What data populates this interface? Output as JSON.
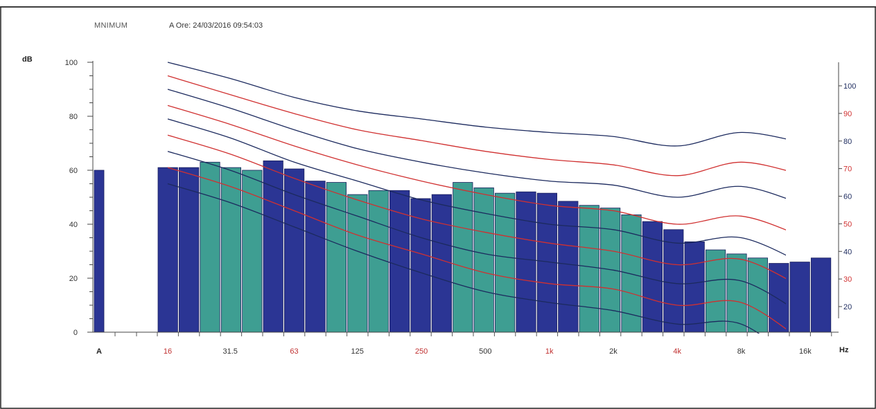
{
  "header": {
    "mode": "MNIMUM",
    "timestamp": "A  Ore: 24/03/2016 09:54:03"
  },
  "chart_data": {
    "type": "bar",
    "ylabel": "dB",
    "xunit": "Hz",
    "ylim": [
      0,
      100
    ],
    "yticks": [
      0,
      20,
      40,
      60,
      80,
      100
    ],
    "nr_ticks": [
      {
        "label": "100",
        "color": "#1c2a5e"
      },
      {
        "label": "90",
        "color": "#d03030"
      },
      {
        "label": "80",
        "color": "#1c2a5e"
      },
      {
        "label": "70",
        "color": "#d03030"
      },
      {
        "label": "60",
        "color": "#1c2a5e"
      },
      {
        "label": "50",
        "color": "#d03030"
      },
      {
        "label": "40",
        "color": "#1c2a5e"
      },
      {
        "label": "30",
        "color": "#d03030"
      },
      {
        "label": "20",
        "color": "#1c2a5e"
      }
    ],
    "x_labels": [
      {
        "label": "A",
        "color": "#222222",
        "bold": true
      },
      {
        "label": "16",
        "color": "#c03030"
      },
      {
        "label": "31.5",
        "color": "#333333"
      },
      {
        "label": "63",
        "color": "#c03030"
      },
      {
        "label": "125",
        "color": "#333333"
      },
      {
        "label": "250",
        "color": "#c03030"
      },
      {
        "label": "500",
        "color": "#333333"
      },
      {
        "label": "1k",
        "color": "#c03030"
      },
      {
        "label": "2k",
        "color": "#333333"
      },
      {
        "label": "4k",
        "color": "#c03030"
      },
      {
        "label": "8k",
        "color": "#333333"
      },
      {
        "label": "16k",
        "color": "#333333"
      }
    ],
    "colors": {
      "octave": "#2b3594",
      "third": "#3e9e92",
      "nr_dark": "#1c2a5e",
      "nr_red": "#d03030"
    },
    "a_weighted": 60,
    "band_values": [
      61,
      61,
      63,
      61,
      60,
      63.5,
      60.5,
      56,
      55.5,
      51,
      52.5,
      52.5,
      49.5,
      51,
      55.5,
      53.5,
      51.5,
      52,
      51.5,
      48.5,
      47,
      46,
      43.5,
      41,
      38,
      33.5,
      30.5,
      29,
      27.5,
      25.5,
      26,
      27.5
    ],
    "band_shade": [
      "octave",
      "octave",
      "third",
      "third",
      "third",
      "octave",
      "octave",
      "octave",
      "third",
      "third",
      "third",
      "octave",
      "octave",
      "octave",
      "third",
      "third",
      "third",
      "octave",
      "octave",
      "octave",
      "third",
      "third",
      "third",
      "octave",
      "octave",
      "octave",
      "third",
      "third",
      "third",
      "octave",
      "octave",
      "octave"
    ],
    "nr_curves": [
      {
        "color": "#1c2a5e",
        "points": [
          [
            16,
            100
          ],
          [
            31.5,
            94
          ],
          [
            63,
            87
          ],
          [
            125,
            82
          ],
          [
            250,
            79
          ],
          [
            500,
            76
          ],
          [
            1000,
            74
          ],
          [
            2000,
            72.5
          ],
          [
            4000,
            69
          ],
          [
            8000,
            74
          ],
          [
            16000,
            70
          ]
        ]
      },
      {
        "color": "#d03030",
        "points": [
          [
            16,
            95
          ],
          [
            31.5,
            88
          ],
          [
            63,
            81
          ],
          [
            125,
            75
          ],
          [
            250,
            71
          ],
          [
            500,
            67
          ],
          [
            1000,
            64
          ],
          [
            2000,
            62
          ],
          [
            4000,
            58
          ],
          [
            8000,
            63
          ],
          [
            16000,
            58
          ]
        ]
      },
      {
        "color": "#1c2a5e",
        "points": [
          [
            16,
            90
          ],
          [
            31.5,
            83
          ],
          [
            63,
            75
          ],
          [
            125,
            68
          ],
          [
            250,
            63
          ],
          [
            500,
            59
          ],
          [
            1000,
            56
          ],
          [
            2000,
            54.5
          ],
          [
            4000,
            50
          ],
          [
            8000,
            54
          ],
          [
            16000,
            47
          ]
        ]
      },
      {
        "color": "#d03030",
        "points": [
          [
            16,
            84
          ],
          [
            31.5,
            77
          ],
          [
            63,
            69
          ],
          [
            125,
            62
          ],
          [
            250,
            56
          ],
          [
            500,
            51
          ],
          [
            1000,
            47
          ],
          [
            2000,
            45
          ],
          [
            4000,
            40
          ],
          [
            8000,
            43
          ],
          [
            16000,
            35
          ]
        ]
      },
      {
        "color": "#1c2a5e",
        "points": [
          [
            16,
            79
          ],
          [
            31.5,
            72
          ],
          [
            63,
            63
          ],
          [
            125,
            56
          ],
          [
            250,
            49
          ],
          [
            500,
            44
          ],
          [
            1000,
            40
          ],
          [
            2000,
            38
          ],
          [
            4000,
            33
          ],
          [
            8000,
            35
          ],
          [
            16000,
            25
          ]
        ]
      },
      {
        "color": "#d03030",
        "points": [
          [
            16,
            73
          ],
          [
            31.5,
            66
          ],
          [
            63,
            57
          ],
          [
            125,
            49
          ],
          [
            250,
            42
          ],
          [
            500,
            37
          ],
          [
            1000,
            33
          ],
          [
            2000,
            30
          ],
          [
            4000,
            25
          ],
          [
            8000,
            27
          ],
          [
            16000,
            16
          ]
        ]
      },
      {
        "color": "#1c2a5e",
        "points": [
          [
            16,
            67
          ],
          [
            31.5,
            60
          ],
          [
            63,
            51
          ],
          [
            125,
            43
          ],
          [
            250,
            35
          ],
          [
            500,
            29
          ],
          [
            1000,
            26
          ],
          [
            2000,
            23
          ],
          [
            4000,
            18
          ],
          [
            8000,
            19
          ],
          [
            16000,
            6
          ]
        ]
      },
      {
        "color": "#d03030",
        "points": [
          [
            16,
            61
          ],
          [
            31.5,
            54
          ],
          [
            63,
            45
          ],
          [
            125,
            36
          ],
          [
            250,
            29
          ],
          [
            500,
            22
          ],
          [
            1000,
            18
          ],
          [
            2000,
            16
          ],
          [
            4000,
            10
          ],
          [
            8000,
            11
          ],
          [
            16000,
            -4
          ]
        ]
      },
      {
        "color": "#1c2a5e",
        "points": [
          [
            16,
            55
          ],
          [
            31.5,
            48
          ],
          [
            63,
            39
          ],
          [
            125,
            30
          ],
          [
            250,
            22
          ],
          [
            500,
            15
          ],
          [
            1000,
            11
          ],
          [
            2000,
            8
          ],
          [
            4000,
            3
          ],
          [
            8000,
            3
          ],
          [
            16000,
            -14
          ]
        ]
      }
    ]
  }
}
